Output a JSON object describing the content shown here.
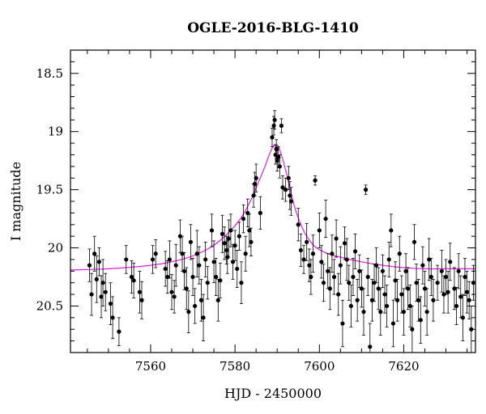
{
  "chart_data": {
    "type": "scatter",
    "title": "OGLE-2016-BLG-1410",
    "xlabel": "HJD - 2450000",
    "ylabel": "I magnitude",
    "xlim": [
      7541,
      7637
    ],
    "ylim": [
      20.9,
      18.3
    ],
    "y_inverted": true,
    "x_major_ticks": [
      7560,
      7580,
      7600,
      7620
    ],
    "y_major_ticks": [
      18.5,
      19,
      19.5,
      20,
      20.5
    ],
    "x_minor_step": 5,
    "y_minor_step": 0.1,
    "grid": false,
    "legend": "none",
    "colors": {
      "points": "#000000",
      "model": "#e020e0"
    },
    "model": {
      "name": "",
      "x": [
        7541,
        7550,
        7560,
        7565,
        7570,
        7574,
        7577,
        7580,
        7582,
        7584,
        7585.5,
        7587,
        7588,
        7589,
        7589.6,
        7590.3,
        7591,
        7592,
        7593,
        7594,
        7595.5,
        7597,
        7599,
        7602,
        7605,
        7610,
        7615,
        7620,
        7625,
        7630,
        7637
      ],
      "y": [
        20.19,
        20.18,
        20.15,
        20.12,
        20.07,
        20.0,
        19.92,
        19.81,
        19.71,
        19.57,
        19.44,
        19.31,
        19.21,
        19.13,
        19.11,
        19.13,
        19.2,
        19.33,
        19.48,
        19.63,
        19.79,
        19.9,
        19.99,
        20.05,
        20.08,
        20.12,
        20.15,
        20.17,
        20.18,
        20.18,
        20.18
      ]
    },
    "series": [
      {
        "name": "",
        "points": [
          [
            7545.5,
            20.15,
            0.14
          ],
          [
            7546,
            20.4,
            0.18
          ],
          [
            7546.7,
            20.05,
            0.15
          ],
          [
            7547.2,
            20.27,
            0.2
          ],
          [
            7547.8,
            20.12,
            0.12
          ],
          [
            7548.3,
            20.42,
            0.18
          ],
          [
            7548.7,
            20.3,
            0.2
          ],
          [
            7549.3,
            20.38,
            0.16
          ],
          [
            7550.5,
            20.48,
            0.18
          ],
          [
            7551,
            20.6,
            0.18
          ],
          [
            7552.5,
            20.72,
            0.12
          ],
          [
            7554.2,
            20.1,
            0.12
          ],
          [
            7555.5,
            20.25,
            0.14
          ],
          [
            7556,
            20.28,
            0.15
          ],
          [
            7557.4,
            20.38,
            0.18
          ],
          [
            7557.9,
            20.45,
            0.16
          ],
          [
            7560.5,
            20.1,
            0.12
          ],
          [
            7561.2,
            20.05,
            0.12
          ],
          [
            7563.5,
            20.18,
            0.15
          ],
          [
            7564,
            20.25,
            0.14
          ],
          [
            7564.5,
            20.1,
            0.16
          ],
          [
            7565,
            20.38,
            0.15
          ],
          [
            7565.6,
            20.42,
            0.14
          ],
          [
            7566,
            20.15,
            0.18
          ],
          [
            7567,
            19.9,
            0.14
          ],
          [
            7567.5,
            20.05,
            0.15
          ],
          [
            7568,
            20.2,
            0.16
          ],
          [
            7568.5,
            20.35,
            0.18
          ],
          [
            7569,
            20.55,
            0.18
          ],
          [
            7569.5,
            19.95,
            0.15
          ],
          [
            7570,
            20.25,
            0.16
          ],
          [
            7570.5,
            20.5,
            0.15
          ],
          [
            7571,
            20.05,
            0.2
          ],
          [
            7571.5,
            20.15,
            0.16
          ],
          [
            7572,
            20.45,
            0.18
          ],
          [
            7572.5,
            20.6,
            0.2
          ],
          [
            7573,
            20.1,
            0.15
          ],
          [
            7573.5,
            20.3,
            0.14
          ],
          [
            7574.5,
            19.85,
            0.14
          ],
          [
            7575,
            20.12,
            0.18
          ],
          [
            7575.5,
            20.25,
            0.16
          ],
          [
            7576,
            20.45,
            0.18
          ],
          [
            7576.5,
            20.28,
            0.15
          ],
          [
            7577,
            19.88,
            0.16
          ],
          [
            7577.5,
            19.96,
            0.14
          ],
          [
            7578,
            20.02,
            0.12
          ],
          [
            7578.2,
            20.08,
            0.14
          ],
          [
            7578.5,
            19.92,
            0.16
          ],
          [
            7579,
            19.85,
            0.14
          ],
          [
            7579.5,
            20.12,
            0.15
          ],
          [
            7580,
            19.98,
            0.13
          ],
          [
            7580.5,
            20.18,
            0.16
          ],
          [
            7581,
            19.9,
            0.12
          ],
          [
            7581.5,
            20.3,
            0.18
          ],
          [
            7582,
            19.75,
            0.12
          ],
          [
            7582.5,
            20.05,
            0.15
          ],
          [
            7583,
            19.7,
            0.12
          ],
          [
            7583.4,
            19.85,
            0.14
          ],
          [
            7583.8,
            19.95,
            0.12
          ],
          [
            7584.4,
            19.55,
            0.1
          ],
          [
            7584.7,
            19.45,
            0.1
          ],
          [
            7585,
            19.4,
            0.12
          ],
          [
            7586,
            19.7,
            0.14
          ],
          [
            7588.8,
            19.05,
            0.08
          ],
          [
            7589.2,
            18.95,
            0.08
          ],
          [
            7589.4,
            18.9,
            0.08
          ],
          [
            7589.6,
            19.2,
            0.08
          ],
          [
            7589.8,
            19.15,
            0.08
          ],
          [
            7590,
            19.25,
            0.09
          ],
          [
            7590.3,
            19.22,
            0.09
          ],
          [
            7590.6,
            19.3,
            0.1
          ],
          [
            7591,
            18.95,
            0.06
          ],
          [
            7591.3,
            19.48,
            0.1
          ],
          [
            7592,
            19.5,
            0.1
          ],
          [
            7592.7,
            19.4,
            0.1
          ],
          [
            7593,
            19.55,
            0.12
          ],
          [
            7593.3,
            19.6,
            0.12
          ],
          [
            7595,
            19.8,
            0.14
          ],
          [
            7595.6,
            20.02,
            0.14
          ],
          [
            7596.3,
            20.1,
            0.12
          ],
          [
            7597,
            19.95,
            0.16
          ],
          [
            7597.6,
            20.15,
            0.14
          ],
          [
            7598,
            20.25,
            0.15
          ],
          [
            7598.5,
            20.05,
            0.16
          ],
          [
            7599,
            19.42,
            0.04
          ],
          [
            7600,
            19.85,
            0.15
          ],
          [
            7600.5,
            20.12,
            0.14
          ],
          [
            7601,
            20.3,
            0.16
          ],
          [
            7601.5,
            19.75,
            0.16
          ],
          [
            7602,
            20.2,
            0.15
          ],
          [
            7602.5,
            20.35,
            0.18
          ],
          [
            7603,
            20.05,
            0.16
          ],
          [
            7603.5,
            20.25,
            0.15
          ],
          [
            7604,
            19.92,
            0.16
          ],
          [
            7604.5,
            20.4,
            0.18
          ],
          [
            7605,
            20.15,
            0.16
          ],
          [
            7605.5,
            20.65,
            0.2
          ],
          [
            7606,
            19.96,
            0.14
          ],
          [
            7606.5,
            20.1,
            0.18
          ],
          [
            7607,
            20.3,
            0.15
          ],
          [
            7607.5,
            20.5,
            0.18
          ],
          [
            7608,
            20.25,
            0.16
          ],
          [
            7608.5,
            20.03,
            0.15
          ],
          [
            7609,
            20.45,
            0.18
          ],
          [
            7609.5,
            20.2,
            0.14
          ],
          [
            7610,
            20.35,
            0.16
          ],
          [
            7610.5,
            20.55,
            0.2
          ],
          [
            7611,
            19.5,
            0.04
          ],
          [
            7611.5,
            20.25,
            0.16
          ],
          [
            7612,
            20.85,
            0.2
          ],
          [
            7612.5,
            20.45,
            0.18
          ],
          [
            7613,
            20.3,
            0.16
          ],
          [
            7613.5,
            20.15,
            0.15
          ],
          [
            7614,
            20.35,
            0.18
          ],
          [
            7614.5,
            20.55,
            0.2
          ],
          [
            7615,
            20.2,
            0.14
          ],
          [
            7615.5,
            20.4,
            0.16
          ],
          [
            7616,
            20.5,
            0.18
          ],
          [
            7616.5,
            20.1,
            0.15
          ],
          [
            7617,
            19.85,
            0.14
          ],
          [
            7617.5,
            20.65,
            0.2
          ],
          [
            7618,
            20.28,
            0.16
          ],
          [
            7618.5,
            20.45,
            0.18
          ],
          [
            7619,
            20.05,
            0.15
          ],
          [
            7619.5,
            20.4,
            0.16
          ],
          [
            7620,
            20.55,
            0.2
          ],
          [
            7620.5,
            20.2,
            0.15
          ],
          [
            7621,
            20.35,
            0.18
          ],
          [
            7621.5,
            20.5,
            0.18
          ],
          [
            7622,
            20.7,
            0.2
          ],
          [
            7622.5,
            19.95,
            0.15
          ],
          [
            7623,
            20.3,
            0.16
          ],
          [
            7623.5,
            20.45,
            0.18
          ],
          [
            7624,
            20.62,
            0.2
          ],
          [
            7624.5,
            20.15,
            0.16
          ],
          [
            7625,
            20.35,
            0.15
          ],
          [
            7625.5,
            20.55,
            0.2
          ],
          [
            7626,
            20.1,
            0.18
          ],
          [
            7626.5,
            20.25,
            0.16
          ],
          [
            7627,
            20.45,
            0.18
          ],
          [
            7628,
            20.3,
            0.15
          ],
          [
            7629,
            20.2,
            0.18
          ],
          [
            7629.5,
            20.4,
            0.16
          ],
          [
            7630,
            20.25,
            0.15
          ],
          [
            7630.5,
            20.38,
            0.18
          ],
          [
            7631,
            20.12,
            0.16
          ],
          [
            7632,
            20.35,
            0.18
          ],
          [
            7632.5,
            20.5,
            0.16
          ],
          [
            7633,
            20.2,
            0.15
          ],
          [
            7633.5,
            20.42,
            0.18
          ],
          [
            7634,
            20.6,
            0.2
          ],
          [
            7634.5,
            20.25,
            0.16
          ],
          [
            7635,
            20.38,
            0.18
          ],
          [
            7635.5,
            20.45,
            0.16
          ],
          [
            7636,
            20.7,
            0.2
          ],
          [
            7636.5,
            20.3,
            0.15
          ]
        ]
      }
    ]
  }
}
